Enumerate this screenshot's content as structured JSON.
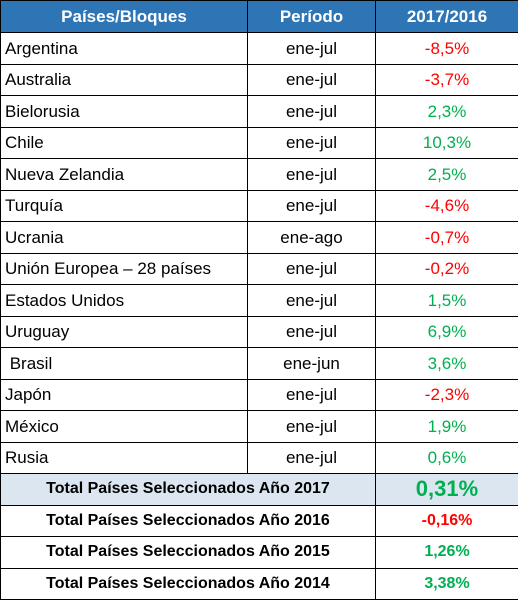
{
  "colors": {
    "header_bg": "#2e75b6",
    "highlight_bg": "#dce6f1",
    "negative": "#ff0000",
    "positive": "#00b050"
  },
  "table": {
    "headers": [
      "Países/Bloques",
      "Período",
      "2017/2016"
    ],
    "rows": [
      {
        "country": "Argentina",
        "period": "ene-jul",
        "value": "-8,5%"
      },
      {
        "country": "Australia",
        "period": "ene-jul",
        "value": "-3,7%"
      },
      {
        "country": "Bielorusia",
        "period": "ene-jul",
        "value": "2,3%"
      },
      {
        "country": "Chile",
        "period": "ene-jul",
        "value": "10,3%"
      },
      {
        "country": "Nueva Zelandia",
        "period": "ene-jul",
        "value": "2,5%"
      },
      {
        "country": "Turquía",
        "period": "ene-jul",
        "value": "-4,6%"
      },
      {
        "country": "Ucrania",
        "period": "ene-ago",
        "value": "-0,7%"
      },
      {
        "country": "Unión Europea – 28 países",
        "period": "ene-jul",
        "value": "-0,2%"
      },
      {
        "country": "Estados Unidos",
        "period": "ene-jul",
        "value": "1,5%"
      },
      {
        "country": "Uruguay",
        "period": "ene-jul",
        "value": "6,9%"
      },
      {
        "country": " Brasil",
        "period": "ene-jun",
        "value": "3,6%"
      },
      {
        "country": "Japón",
        "period": "ene-jul",
        "value": "-2,3%"
      },
      {
        "country": "México",
        "period": "ene-jul",
        "value": "1,9%"
      },
      {
        "country": "Rusia",
        "period": "ene-jul",
        "value": "0,6%"
      }
    ],
    "totals": [
      {
        "label": "Total Países Seleccionados Año 2017",
        "value": "0,31%"
      },
      {
        "label": "Total Países Seleccionados Año 2016",
        "value": "-0,16%"
      },
      {
        "label": "Total Países Seleccionados Año 2015",
        "value": "1,26%"
      },
      {
        "label": "Total Países Seleccionados Año 2014",
        "value": "3,38%"
      }
    ]
  }
}
